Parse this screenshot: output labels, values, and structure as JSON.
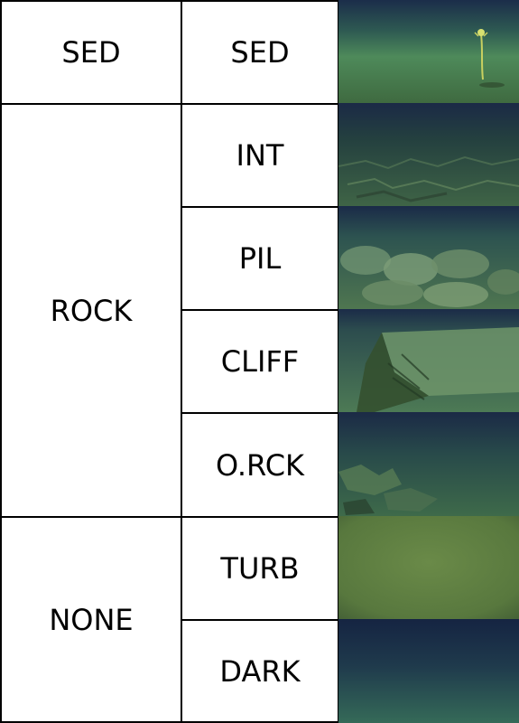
{
  "categories": [
    {
      "label": "SED"
    },
    {
      "label": "ROCK"
    },
    {
      "label": "NONE"
    }
  ],
  "subcategories": [
    {
      "label": "SED",
      "photo": "sediment-seafloor-with-stalked-organism"
    },
    {
      "label": "INT",
      "photo": "intermediate-rocky-seafloor"
    },
    {
      "label": "PIL",
      "photo": "pillow-lava-seafloor"
    },
    {
      "label": "CLIFF",
      "photo": "rock-cliff-edge"
    },
    {
      "label": "O.RCK",
      "photo": "other-rock-seafloor"
    },
    {
      "label": "TURB",
      "photo": "turbid-water"
    },
    {
      "label": "DARK",
      "photo": "dark-water"
    }
  ],
  "colors": {
    "deep_water": "#1a2a45",
    "sediment_green": "#4f7a45",
    "turbid": "#5a7a3e"
  }
}
